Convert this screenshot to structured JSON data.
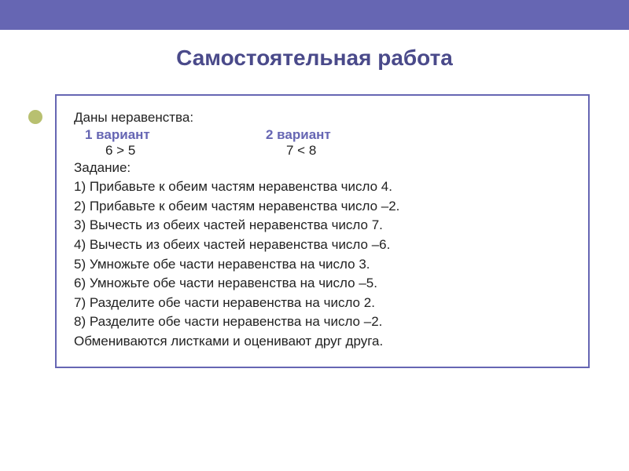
{
  "colors": {
    "accent": "#6666b3",
    "title": "#4a4a8a",
    "bullet": "#b8c070",
    "text": "#222222",
    "background": "#ffffff"
  },
  "typography": {
    "title_fontsize": 28,
    "body_fontsize": 17,
    "font_family": "Arial"
  },
  "title": "Самостоятельная работа",
  "intro": "Даны неравенства:",
  "variants": [
    {
      "label": "1 вариант",
      "expr": "6 > 5"
    },
    {
      "label": "2 вариант",
      "expr": "7 < 8"
    }
  ],
  "task_label": "Задание:",
  "tasks": [
    "1) Прибавьте к обеим частям неравенства число 4.",
    "2) Прибавьте к обеим частям неравенства число –2.",
    "3) Вычесть из обеих частей неравенства число 7.",
    "4) Вычесть из обеих частей неравенства число –6.",
    "5) Умножьте обе части неравенства на число 3.",
    "6) Умножьте обе части неравенства на число –5.",
    "7) Разделите обе части неравенства на число 2.",
    "8) Разделите обе части неравенства на число –2."
  ],
  "footer": "Обмениваются листками и оценивают друг друга."
}
